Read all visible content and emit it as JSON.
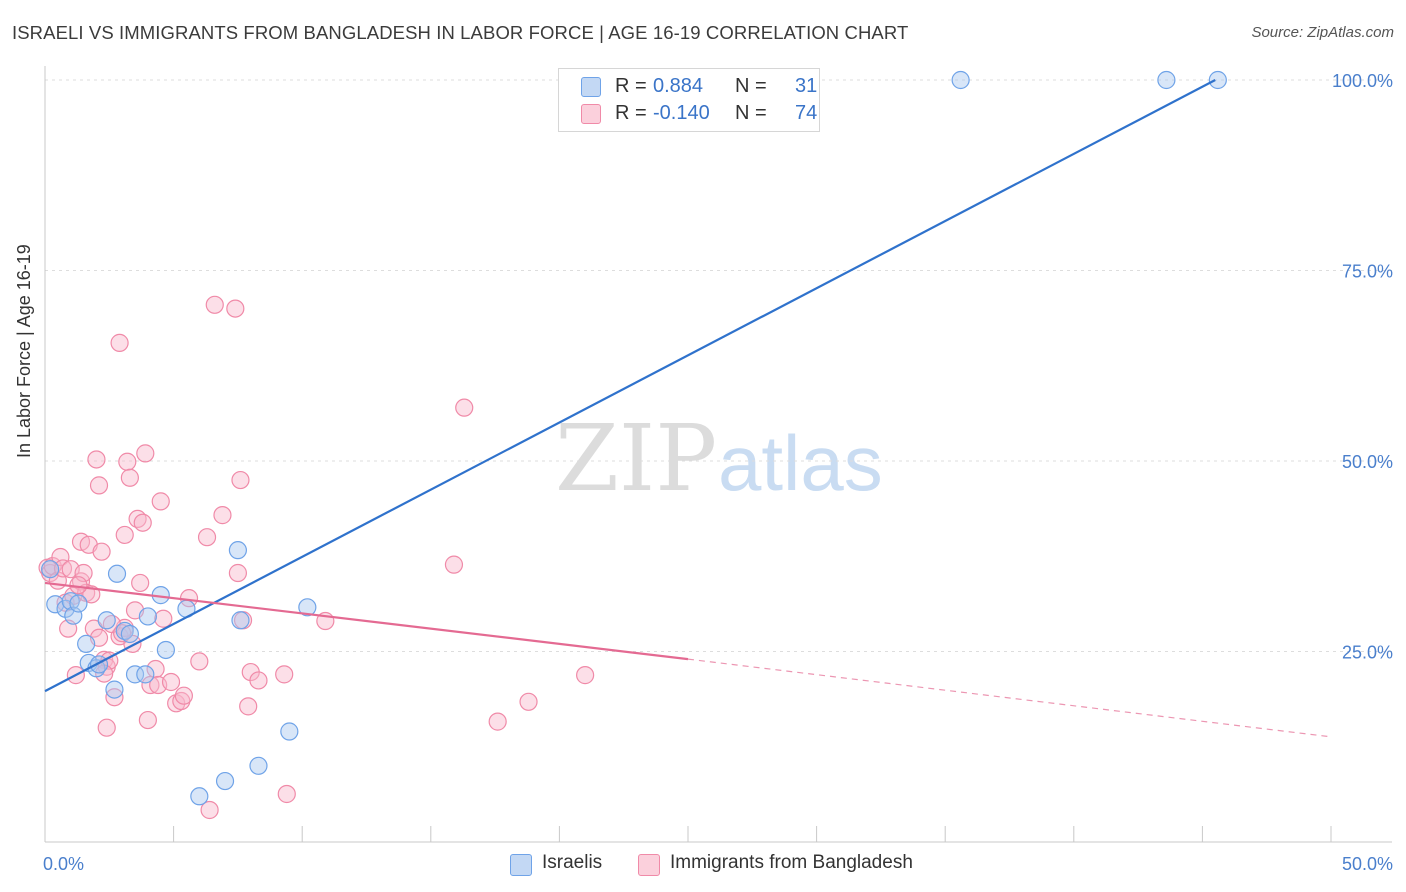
{
  "title": "ISRAELI VS IMMIGRANTS FROM BANGLADESH IN LABOR FORCE | AGE 16-19 CORRELATION CHART",
  "source": "Source: ZipAtlas.com",
  "watermark": {
    "zip": "ZIP",
    "atlas": "atlas"
  },
  "legend_stats": [
    {
      "r_label": "R =",
      "r_value": "0.884",
      "n_label": "N =",
      "n_value": "31",
      "color": "#a8c8f0"
    },
    {
      "r_label": "R =",
      "r_value": "-0.140",
      "n_label": "N =",
      "n_value": "74",
      "color": "#f8b8cc"
    }
  ],
  "chart_data": {
    "type": "scatter",
    "title": "ISRAELI VS IMMIGRANTS FROM BANGLADESH IN LABOR FORCE | AGE 16-19 CORRELATION CHART",
    "xlabel": "",
    "ylabel": "In Labor Force | Age 16-19",
    "xlim": [
      0,
      50
    ],
    "ylim": [
      0,
      102
    ],
    "x_tick_labels": [
      "0.0%",
      "50.0%"
    ],
    "y_tick_labels": [
      "25.0%",
      "50.0%",
      "75.0%",
      "100.0%"
    ],
    "y_ticks": [
      25,
      50,
      75,
      100
    ],
    "grid": true,
    "legend_position": "top-center",
    "series": [
      {
        "name": "Israelis",
        "color": "#6fa3e8",
        "fill": "#a8c8f0",
        "trend": {
          "x": [
            0,
            45.5
          ],
          "y": [
            19.8,
            100
          ],
          "color": "#2f72cc",
          "dashed_to": null
        },
        "points": [
          [
            0.4,
            31.2
          ],
          [
            0.8,
            30.6
          ],
          [
            1.0,
            31.6
          ],
          [
            1.1,
            29.7
          ],
          [
            1.3,
            31.3
          ],
          [
            1.6,
            26.0
          ],
          [
            1.7,
            23.5
          ],
          [
            2.0,
            22.8
          ],
          [
            2.1,
            23.3
          ],
          [
            2.4,
            29.1
          ],
          [
            2.7,
            20.0
          ],
          [
            2.8,
            35.2
          ],
          [
            3.1,
            27.7
          ],
          [
            3.3,
            27.3
          ],
          [
            3.5,
            22.0
          ],
          [
            3.9,
            22.0
          ],
          [
            4.0,
            29.6
          ],
          [
            4.5,
            32.4
          ],
          [
            4.7,
            25.2
          ],
          [
            5.5,
            30.6
          ],
          [
            6.0,
            6.0
          ],
          [
            7.0,
            8.0
          ],
          [
            7.5,
            38.3
          ],
          [
            7.6,
            29.1
          ],
          [
            8.3,
            10.0
          ],
          [
            9.5,
            14.5
          ],
          [
            10.2,
            30.8
          ],
          [
            35.6,
            100
          ],
          [
            43.6,
            100
          ],
          [
            45.6,
            100
          ],
          [
            0.2,
            35.8
          ]
        ]
      },
      {
        "name": "Immigrants from Bangladesh",
        "color": "#f08aa8",
        "fill": "#f8b8cc",
        "trend": {
          "x": [
            0,
            25
          ],
          "y": [
            34.0,
            24.0
          ],
          "dashed_x": [
            25,
            50
          ],
          "dashed_y": [
            24.0,
            13.8
          ],
          "color": "#e46a92"
        },
        "points": [
          [
            0.1,
            36.0
          ],
          [
            0.2,
            35.3
          ],
          [
            0.3,
            36.2
          ],
          [
            0.5,
            34.3
          ],
          [
            0.6,
            37.4
          ],
          [
            0.7,
            35.9
          ],
          [
            0.8,
            31.4
          ],
          [
            0.9,
            28.0
          ],
          [
            1.0,
            35.8
          ],
          [
            1.1,
            32.3
          ],
          [
            1.2,
            21.9
          ],
          [
            1.4,
            34.2
          ],
          [
            1.4,
            39.4
          ],
          [
            1.5,
            35.3
          ],
          [
            1.6,
            32.7
          ],
          [
            1.7,
            39.0
          ],
          [
            1.8,
            32.5
          ],
          [
            1.9,
            28.0
          ],
          [
            2.0,
            50.2
          ],
          [
            2.1,
            46.8
          ],
          [
            2.1,
            26.8
          ],
          [
            2.2,
            38.1
          ],
          [
            2.3,
            23.9
          ],
          [
            2.4,
            15.0
          ],
          [
            2.4,
            23.0
          ],
          [
            2.5,
            23.8
          ],
          [
            2.7,
            19.0
          ],
          [
            2.9,
            27.0
          ],
          [
            2.9,
            65.5
          ],
          [
            3.1,
            28.1
          ],
          [
            3.1,
            40.3
          ],
          [
            3.2,
            49.9
          ],
          [
            3.3,
            47.8
          ],
          [
            3.4,
            26.0
          ],
          [
            3.5,
            30.4
          ],
          [
            3.6,
            42.4
          ],
          [
            3.7,
            34.0
          ],
          [
            3.8,
            41.9
          ],
          [
            3.9,
            51.0
          ],
          [
            4.0,
            16.0
          ],
          [
            4.1,
            20.6
          ],
          [
            4.3,
            22.7
          ],
          [
            4.4,
            20.6
          ],
          [
            4.5,
            44.7
          ],
          [
            4.6,
            29.3
          ],
          [
            4.9,
            21.0
          ],
          [
            5.1,
            18.2
          ],
          [
            5.3,
            18.5
          ],
          [
            5.4,
            19.2
          ],
          [
            5.6,
            32.0
          ],
          [
            6.0,
            23.7
          ],
          [
            6.3,
            40.0
          ],
          [
            6.9,
            42.9
          ],
          [
            6.6,
            70.5
          ],
          [
            7.4,
            70.0
          ],
          [
            7.5,
            35.3
          ],
          [
            7.6,
            47.5
          ],
          [
            7.7,
            29.1
          ],
          [
            7.9,
            17.8
          ],
          [
            8.0,
            22.3
          ],
          [
            8.3,
            21.2
          ],
          [
            9.3,
            22.0
          ],
          [
            9.4,
            6.3
          ],
          [
            10.9,
            29.0
          ],
          [
            15.9,
            36.4
          ],
          [
            16.3,
            57.0
          ],
          [
            17.6,
            15.8
          ],
          [
            18.8,
            18.4
          ],
          [
            21.0,
            21.9
          ],
          [
            6.4,
            4.2
          ],
          [
            2.3,
            22.1
          ],
          [
            2.6,
            28.6
          ],
          [
            3.0,
            27.4
          ],
          [
            1.3,
            33.7
          ]
        ]
      }
    ]
  }
}
